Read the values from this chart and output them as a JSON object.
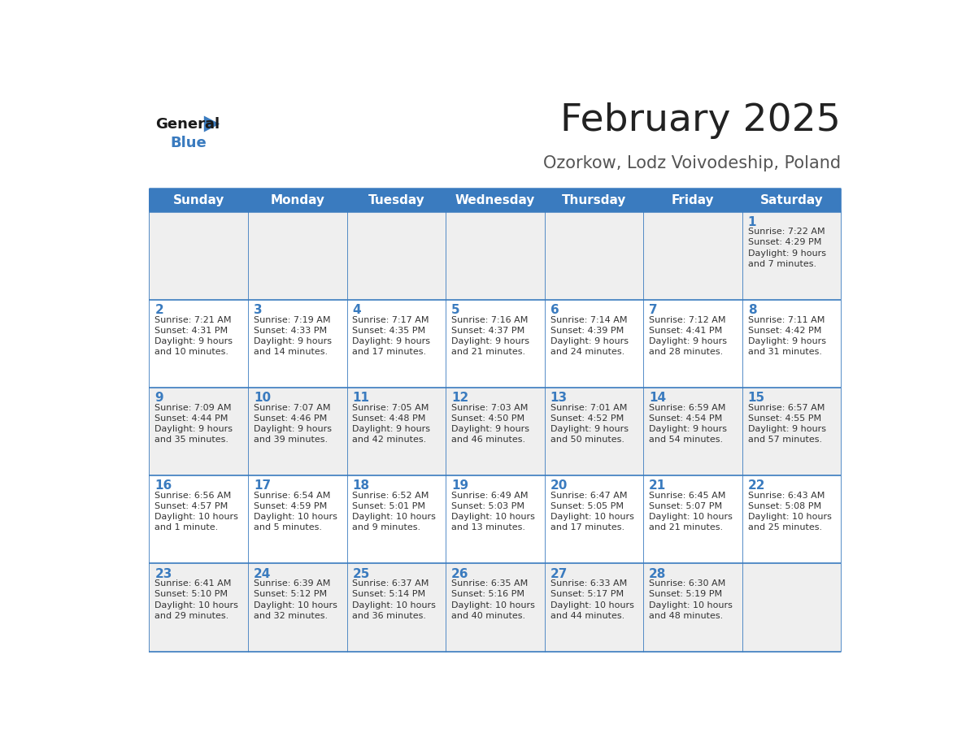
{
  "title": "February 2025",
  "subtitle": "Ozorkow, Lodz Voivodeship, Poland",
  "days_of_week": [
    "Sunday",
    "Monday",
    "Tuesday",
    "Wednesday",
    "Thursday",
    "Friday",
    "Saturday"
  ],
  "header_bg": "#3a7bbf",
  "header_text": "#ffffff",
  "cell_bg_odd": "#efefef",
  "cell_bg_even": "#ffffff",
  "border_color": "#3a7bbf",
  "title_color": "#222222",
  "subtitle_color": "#555555",
  "day_num_color": "#3a7bbf",
  "cell_text_color": "#333333",
  "logo_general_color": "#1a1a1a",
  "logo_blue_color": "#3a7bbf",
  "calendar_data": [
    [
      {
        "day": null,
        "sunrise": null,
        "sunset": null,
        "daylight": null
      },
      {
        "day": null,
        "sunrise": null,
        "sunset": null,
        "daylight": null
      },
      {
        "day": null,
        "sunrise": null,
        "sunset": null,
        "daylight": null
      },
      {
        "day": null,
        "sunrise": null,
        "sunset": null,
        "daylight": null
      },
      {
        "day": null,
        "sunrise": null,
        "sunset": null,
        "daylight": null
      },
      {
        "day": null,
        "sunrise": null,
        "sunset": null,
        "daylight": null
      },
      {
        "day": 1,
        "sunrise": "7:22 AM",
        "sunset": "4:29 PM",
        "daylight": "9 hours\nand 7 minutes."
      }
    ],
    [
      {
        "day": 2,
        "sunrise": "7:21 AM",
        "sunset": "4:31 PM",
        "daylight": "9 hours\nand 10 minutes."
      },
      {
        "day": 3,
        "sunrise": "7:19 AM",
        "sunset": "4:33 PM",
        "daylight": "9 hours\nand 14 minutes."
      },
      {
        "day": 4,
        "sunrise": "7:17 AM",
        "sunset": "4:35 PM",
        "daylight": "9 hours\nand 17 minutes."
      },
      {
        "day": 5,
        "sunrise": "7:16 AM",
        "sunset": "4:37 PM",
        "daylight": "9 hours\nand 21 minutes."
      },
      {
        "day": 6,
        "sunrise": "7:14 AM",
        "sunset": "4:39 PM",
        "daylight": "9 hours\nand 24 minutes."
      },
      {
        "day": 7,
        "sunrise": "7:12 AM",
        "sunset": "4:41 PM",
        "daylight": "9 hours\nand 28 minutes."
      },
      {
        "day": 8,
        "sunrise": "7:11 AM",
        "sunset": "4:42 PM",
        "daylight": "9 hours\nand 31 minutes."
      }
    ],
    [
      {
        "day": 9,
        "sunrise": "7:09 AM",
        "sunset": "4:44 PM",
        "daylight": "9 hours\nand 35 minutes."
      },
      {
        "day": 10,
        "sunrise": "7:07 AM",
        "sunset": "4:46 PM",
        "daylight": "9 hours\nand 39 minutes."
      },
      {
        "day": 11,
        "sunrise": "7:05 AM",
        "sunset": "4:48 PM",
        "daylight": "9 hours\nand 42 minutes."
      },
      {
        "day": 12,
        "sunrise": "7:03 AM",
        "sunset": "4:50 PM",
        "daylight": "9 hours\nand 46 minutes."
      },
      {
        "day": 13,
        "sunrise": "7:01 AM",
        "sunset": "4:52 PM",
        "daylight": "9 hours\nand 50 minutes."
      },
      {
        "day": 14,
        "sunrise": "6:59 AM",
        "sunset": "4:54 PM",
        "daylight": "9 hours\nand 54 minutes."
      },
      {
        "day": 15,
        "sunrise": "6:57 AM",
        "sunset": "4:55 PM",
        "daylight": "9 hours\nand 57 minutes."
      }
    ],
    [
      {
        "day": 16,
        "sunrise": "6:56 AM",
        "sunset": "4:57 PM",
        "daylight": "10 hours\nand 1 minute."
      },
      {
        "day": 17,
        "sunrise": "6:54 AM",
        "sunset": "4:59 PM",
        "daylight": "10 hours\nand 5 minutes."
      },
      {
        "day": 18,
        "sunrise": "6:52 AM",
        "sunset": "5:01 PM",
        "daylight": "10 hours\nand 9 minutes."
      },
      {
        "day": 19,
        "sunrise": "6:49 AM",
        "sunset": "5:03 PM",
        "daylight": "10 hours\nand 13 minutes."
      },
      {
        "day": 20,
        "sunrise": "6:47 AM",
        "sunset": "5:05 PM",
        "daylight": "10 hours\nand 17 minutes."
      },
      {
        "day": 21,
        "sunrise": "6:45 AM",
        "sunset": "5:07 PM",
        "daylight": "10 hours\nand 21 minutes."
      },
      {
        "day": 22,
        "sunrise": "6:43 AM",
        "sunset": "5:08 PM",
        "daylight": "10 hours\nand 25 minutes."
      }
    ],
    [
      {
        "day": 23,
        "sunrise": "6:41 AM",
        "sunset": "5:10 PM",
        "daylight": "10 hours\nand 29 minutes."
      },
      {
        "day": 24,
        "sunrise": "6:39 AM",
        "sunset": "5:12 PM",
        "daylight": "10 hours\nand 32 minutes."
      },
      {
        "day": 25,
        "sunrise": "6:37 AM",
        "sunset": "5:14 PM",
        "daylight": "10 hours\nand 36 minutes."
      },
      {
        "day": 26,
        "sunrise": "6:35 AM",
        "sunset": "5:16 PM",
        "daylight": "10 hours\nand 40 minutes."
      },
      {
        "day": 27,
        "sunrise": "6:33 AM",
        "sunset": "5:17 PM",
        "daylight": "10 hours\nand 44 minutes."
      },
      {
        "day": 28,
        "sunrise": "6:30 AM",
        "sunset": "5:19 PM",
        "daylight": "10 hours\nand 48 minutes."
      },
      {
        "day": null,
        "sunrise": null,
        "sunset": null,
        "daylight": null
      }
    ]
  ]
}
